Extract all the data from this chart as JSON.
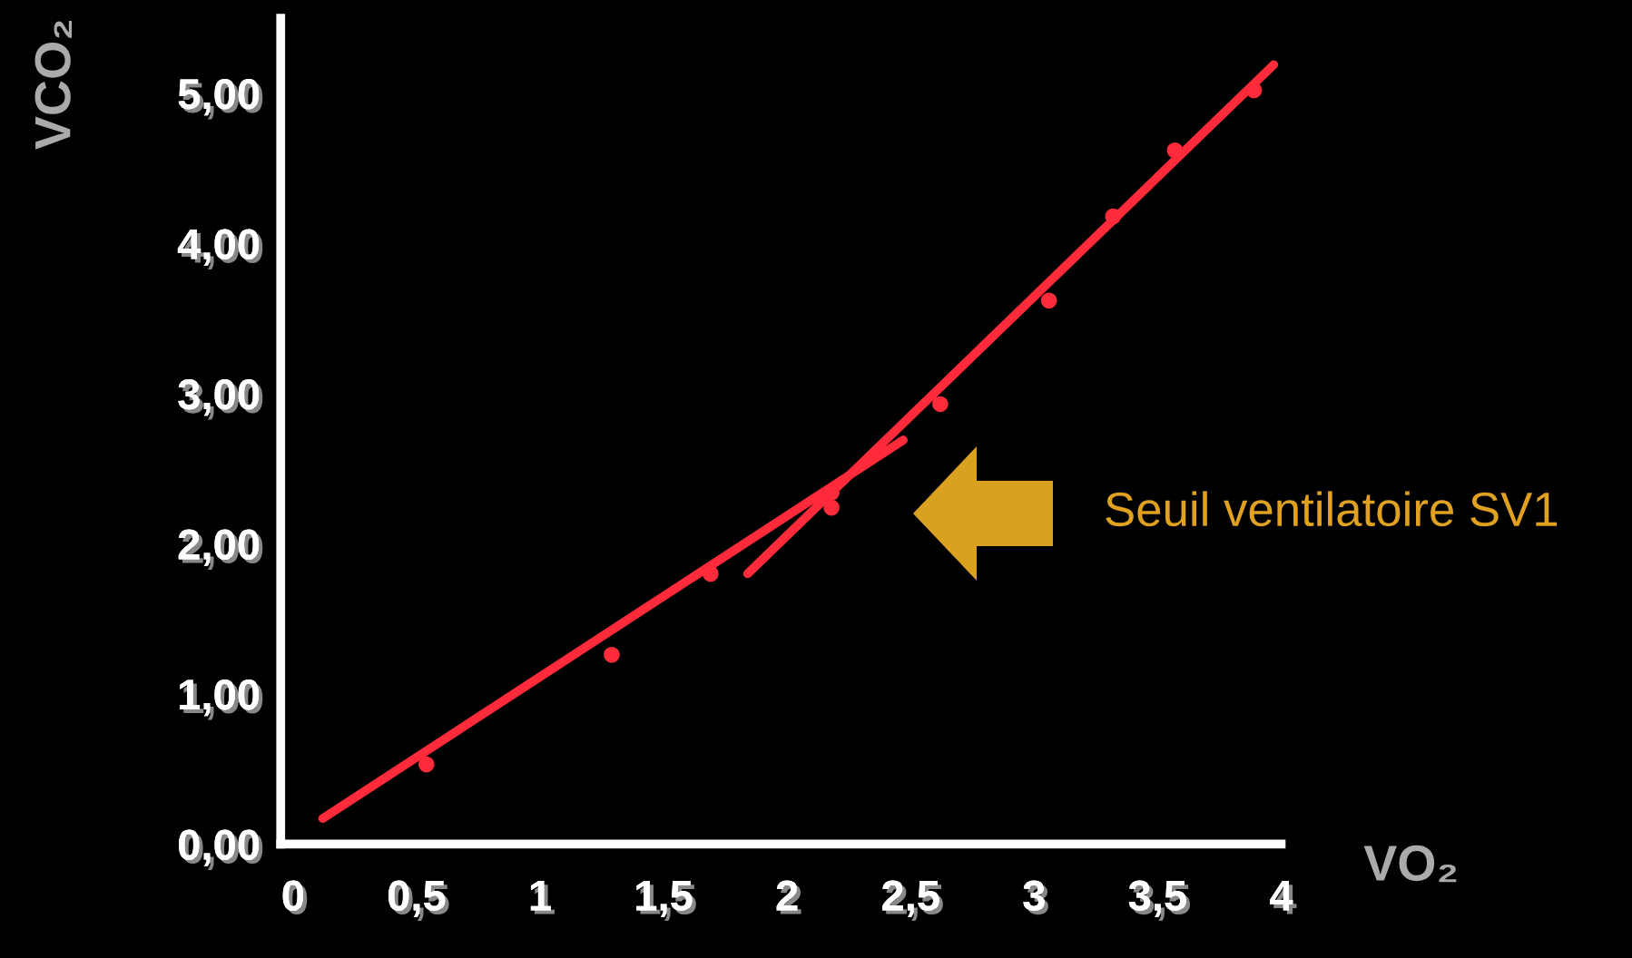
{
  "chart_data": {
    "type": "scatter",
    "xlabel": "VO₂",
    "ylabel": "VCO₂",
    "xlim": [
      -0.05,
      4
    ],
    "xticks": [
      0,
      {
        "value": 0.5,
        "label": "0,5"
      },
      1,
      {
        "value": 1.5,
        "label": "1,5"
      },
      2,
      {
        "value": 2.5,
        "label": "2,5"
      },
      3,
      {
        "value": 3.5,
        "label": "3,5"
      },
      4
    ],
    "ylim": [
      0,
      5.5
    ],
    "yticks": [
      {
        "value": 0,
        "label": "0,00"
      },
      {
        "value": 1,
        "label": "1,00"
      },
      {
        "value": 2,
        "label": "2,00"
      },
      {
        "value": 3,
        "label": "3,00"
      },
      {
        "value": 4,
        "label": "4,00"
      },
      {
        "value": 5,
        "label": "5,00"
      }
    ],
    "grid": false,
    "series": [
      {
        "marker": "circle",
        "color": "#ff2a3a",
        "x": [
          0.54,
          1.29,
          1.69,
          2.18,
          2.18,
          2.62,
          3.06,
          3.32,
          3.57,
          3.89
        ],
        "values": [
          0.53,
          1.26,
          1.8,
          2.34,
          2.24,
          2.93,
          3.62,
          4.18,
          4.62,
          5.02
        ]
      },
      {
        "type": "line",
        "marker": "none",
        "color": "#ff2a3a",
        "line_style": "solid",
        "x": [
          0.12,
          2.47
        ],
        "values": [
          0.17,
          2.69
        ]
      },
      {
        "type": "line",
        "marker": "none",
        "color": "#ff2a3a",
        "line_style": "solid",
        "x": [
          1.84,
          3.97
        ],
        "values": [
          1.8,
          5.19
        ]
      }
    ],
    "annotations": [
      "Seuil ventilatoire SV1"
    ]
  }
}
